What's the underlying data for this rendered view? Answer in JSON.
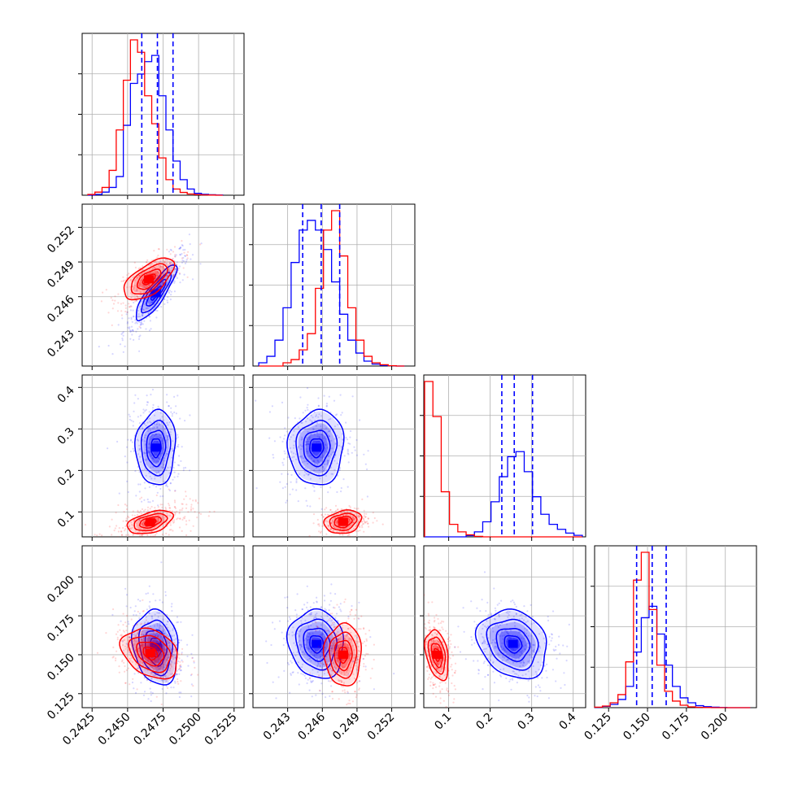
{
  "chart_data": {
    "type": "corner",
    "n_params": 4,
    "grid": true,
    "colors": {
      "series_a": "#0000ff",
      "series_b": "#ff0000"
    },
    "quantile_lines_color": "#0000ff",
    "param_ranges": [
      [
        0.2418,
        0.2532
      ],
      [
        0.24,
        0.254
      ],
      [
        0.04,
        0.43
      ],
      [
        0.116,
        0.22
      ]
    ],
    "ticks": [
      {
        "values": [
          0.2425,
          0.245,
          0.2475,
          0.25,
          0.2525
        ],
        "labels": [
          "0.2425",
          "0.2450",
          "0.2475",
          "0.2500",
          "0.2525"
        ]
      },
      {
        "values": [
          0.243,
          0.246,
          0.249,
          0.252
        ],
        "labels": [
          "0.243",
          "0.246",
          "0.249",
          "0.252"
        ]
      },
      {
        "values": [
          0.1,
          0.2,
          0.3,
          0.4
        ],
        "labels": [
          "0.1",
          "0.2",
          "0.3",
          "0.4"
        ]
      },
      {
        "values": [
          0.125,
          0.15,
          0.175,
          0.2
        ],
        "labels": [
          "0.125",
          "0.150",
          "0.175",
          "0.200"
        ]
      }
    ],
    "quantiles": [
      [
        0.246,
        0.2471,
        0.2482
      ],
      [
        0.2443,
        0.2459,
        0.2475
      ],
      [
        0.228,
        0.258,
        0.302
      ],
      [
        0.143,
        0.153,
        0.162
      ]
    ],
    "histograms": [
      {
        "param": 0,
        "bins": [
          0.2422,
          0.2427,
          0.2432,
          0.2437,
          0.2442,
          0.2447,
          0.2452,
          0.2457,
          0.2462,
          0.2467,
          0.2472,
          0.2477,
          0.2482,
          0.2487,
          0.2492,
          0.2497,
          0.2502,
          0.2507,
          0.2512,
          0.2517
        ],
        "series": [
          {
            "color": "blue",
            "values": [
              0,
              0.005,
              0.02,
              0.05,
              0.12,
              0.45,
              0.72,
              0.78,
              0.86,
              0.9,
              0.64,
              0.42,
              0.22,
              0.1,
              0.04,
              0.012,
              0.006,
              0.003,
              0.001
            ]
          },
          {
            "color": "red",
            "values": [
              0.005,
              0.02,
              0.05,
              0.16,
              0.42,
              0.74,
              1.0,
              0.92,
              0.64,
              0.46,
              0.24,
              0.1,
              0.04,
              0.018,
              0.008,
              0.004,
              0.002,
              0.001,
              0
            ]
          }
        ]
      },
      {
        "param": 1,
        "bins": [
          0.2405,
          0.2412,
          0.2419,
          0.2426,
          0.2433,
          0.244,
          0.2447,
          0.2454,
          0.2461,
          0.2468,
          0.2475,
          0.2482,
          0.2489,
          0.2496,
          0.2503,
          0.251,
          0.2517,
          0.2524,
          0.2531
        ],
        "series": [
          {
            "color": "blue",
            "values": [
              0.01,
              0.03,
              0.08,
              0.18,
              0.32,
              0.42,
              0.45,
              0.42,
              0.36,
              0.26,
              0.16,
              0.08,
              0.04,
              0.015,
              0.006,
              0.002,
              0.001,
              0
            ]
          },
          {
            "color": "red",
            "values": [
              0,
              0,
              0,
              0.01,
              0.02,
              0.05,
              0.1,
              0.24,
              0.42,
              0.48,
              0.34,
              0.18,
              0.08,
              0.03,
              0.01,
              0.004,
              0.001,
              0
            ]
          }
        ]
      },
      {
        "param": 2,
        "bins": [
          0.042,
          0.062,
          0.082,
          0.102,
          0.122,
          0.142,
          0.162,
          0.182,
          0.202,
          0.222,
          0.242,
          0.262,
          0.282,
          0.302,
          0.322,
          0.342,
          0.362,
          0.382,
          0.402,
          0.422
        ],
        "series": [
          {
            "color": "blue",
            "values": [
              0,
              0,
              0,
              0,
              0,
              0.005,
              0.02,
              0.06,
              0.14,
              0.24,
              0.32,
              0.34,
              0.26,
              0.16,
              0.09,
              0.05,
              0.03,
              0.015,
              0.006
            ]
          },
          {
            "color": "red",
            "values": [
              0.62,
              0.48,
              0.18,
              0.05,
              0.02,
              0.008,
              0.002,
              0,
              0,
              0,
              0,
              0,
              0,
              0,
              0,
              0,
              0,
              0,
              0
            ]
          }
        ]
      },
      {
        "param": 3,
        "bins": [
          0.116,
          0.121,
          0.126,
          0.131,
          0.136,
          0.141,
          0.146,
          0.151,
          0.156,
          0.161,
          0.166,
          0.171,
          0.176,
          0.181,
          0.186,
          0.191,
          0.196,
          0.201,
          0.206,
          0.211,
          0.216
        ],
        "series": [
          {
            "color": "blue",
            "values": [
              0.002,
              0.008,
              0.02,
              0.05,
              0.13,
              0.34,
              0.55,
              0.62,
              0.45,
              0.26,
              0.13,
              0.06,
              0.03,
              0.012,
              0.006,
              0.003,
              0.001,
              0,
              0,
              0
            ]
          },
          {
            "color": "red",
            "values": [
              0.003,
              0.01,
              0.03,
              0.08,
              0.28,
              0.78,
              0.95,
              0.6,
              0.26,
              0.1,
              0.04,
              0.015,
              0.005,
              0.002,
              0.001,
              0,
              0,
              0,
              0,
              0
            ]
          }
        ]
      }
    ],
    "pairs": [
      {
        "row": 1,
        "col": 0,
        "blobs": [
          {
            "color": "blue",
            "cx": 0.247,
            "cy": 0.2463,
            "sx": 0.00072,
            "sy": 0.0012,
            "rho": 0.86,
            "points": 420,
            "ext": 1.6
          },
          {
            "color": "red",
            "cx": 0.2465,
            "cy": 0.2475,
            "sx": 0.00088,
            "sy": 0.0009,
            "rho": 0.62,
            "points": 360,
            "ext": 1.3
          }
        ]
      },
      {
        "row": 2,
        "col": 0,
        "blobs": [
          {
            "color": "blue",
            "cx": 0.247,
            "cy": 0.255,
            "sx": 0.0007,
            "sy": 0.045,
            "rho": 0.05,
            "points": 380,
            "ext": 1.3
          },
          {
            "color": "red",
            "cx": 0.2466,
            "cy": 0.075,
            "sx": 0.0008,
            "sy": 0.014,
            "rho": 0.45,
            "points": 340,
            "ext": 1.9
          }
        ]
      },
      {
        "row": 2,
        "col": 1,
        "blobs": [
          {
            "color": "blue",
            "cx": 0.2455,
            "cy": 0.255,
            "sx": 0.0012,
            "sy": 0.045,
            "rho": 0.05,
            "points": 380,
            "ext": 1.3
          },
          {
            "color": "red",
            "cx": 0.2478,
            "cy": 0.076,
            "sx": 0.0008,
            "sy": 0.014,
            "rho": 0.2,
            "points": 340,
            "ext": 1.3
          }
        ]
      },
      {
        "row": 3,
        "col": 0,
        "blobs": [
          {
            "color": "blue",
            "cx": 0.247,
            "cy": 0.155,
            "sx": 0.0008,
            "sy": 0.012,
            "rho": -0.15,
            "points": 380,
            "ext": 1.3
          },
          {
            "color": "red",
            "cx": 0.2466,
            "cy": 0.151,
            "sx": 0.001,
            "sy": 0.008,
            "rho": -0.3,
            "points": 340,
            "ext": 1.3
          }
        ]
      },
      {
        "row": 3,
        "col": 1,
        "blobs": [
          {
            "color": "blue",
            "cx": 0.2455,
            "cy": 0.157,
            "sx": 0.0012,
            "sy": 0.011,
            "rho": -0.1,
            "points": 380,
            "ext": 1.3
          },
          {
            "color": "red",
            "cx": 0.2478,
            "cy": 0.15,
            "sx": 0.0008,
            "sy": 0.01,
            "rho": 0.0,
            "points": 340,
            "ext": 1.3
          }
        ]
      },
      {
        "row": 3,
        "col": 2,
        "blobs": [
          {
            "color": "blue",
            "cx": 0.255,
            "cy": 0.157,
            "sx": 0.042,
            "sy": 0.011,
            "rho": -0.2,
            "points": 380,
            "ext": 1.3
          },
          {
            "color": "red",
            "cx": 0.072,
            "cy": 0.15,
            "sx": 0.014,
            "sy": 0.008,
            "rho": -0.35,
            "points": 340,
            "ext": 1.5
          }
        ]
      }
    ]
  }
}
